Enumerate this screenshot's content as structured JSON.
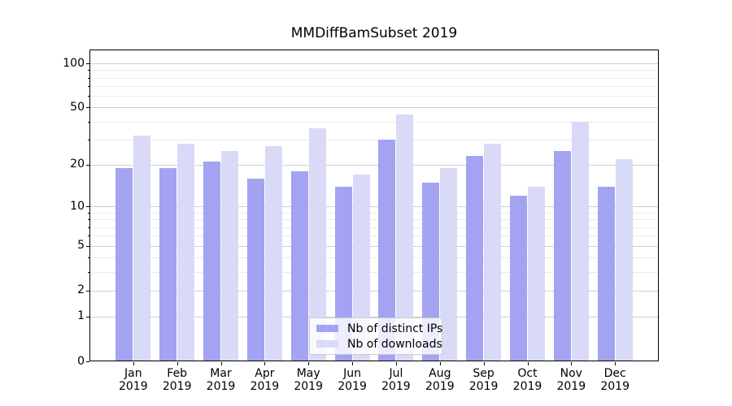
{
  "chart_data": {
    "type": "bar",
    "title": "MMDiffBamSubset 2019",
    "categories": [
      "Jan 2019",
      "Feb 2019",
      "Mar 2019",
      "Apr 2019",
      "May 2019",
      "Jun 2019",
      "Jul 2019",
      "Aug 2019",
      "Sep 2019",
      "Oct 2019",
      "Nov 2019",
      "Dec 2019"
    ],
    "series": [
      {
        "name": "Nb of distinct IPs",
        "color": "#a3a3f2",
        "values": [
          19,
          19,
          21,
          16,
          18,
          14,
          30,
          15,
          23,
          12,
          25,
          14
        ]
      },
      {
        "name": "Nb of downloads",
        "color": "#d9d9f8",
        "values": [
          32,
          28,
          25,
          27,
          36,
          17,
          45,
          19,
          28,
          14,
          40,
          22
        ]
      }
    ],
    "xlabel": "",
    "ylabel": "",
    "yscale": "log10(1+x)",
    "ylim": [
      0,
      124
    ],
    "y_major_ticks": [
      0,
      1,
      2,
      5,
      10,
      20,
      50,
      100
    ],
    "y_minor_ticks": [
      3,
      4,
      6,
      7,
      8,
      9,
      30,
      40,
      60,
      70,
      80,
      90
    ],
    "grid": true,
    "legend_position": "lower center",
    "colors": {
      "major_grid": "#cfcfcf",
      "minor_grid": "#eaeaea",
      "spine": "#000000",
      "text": "#000000"
    }
  }
}
